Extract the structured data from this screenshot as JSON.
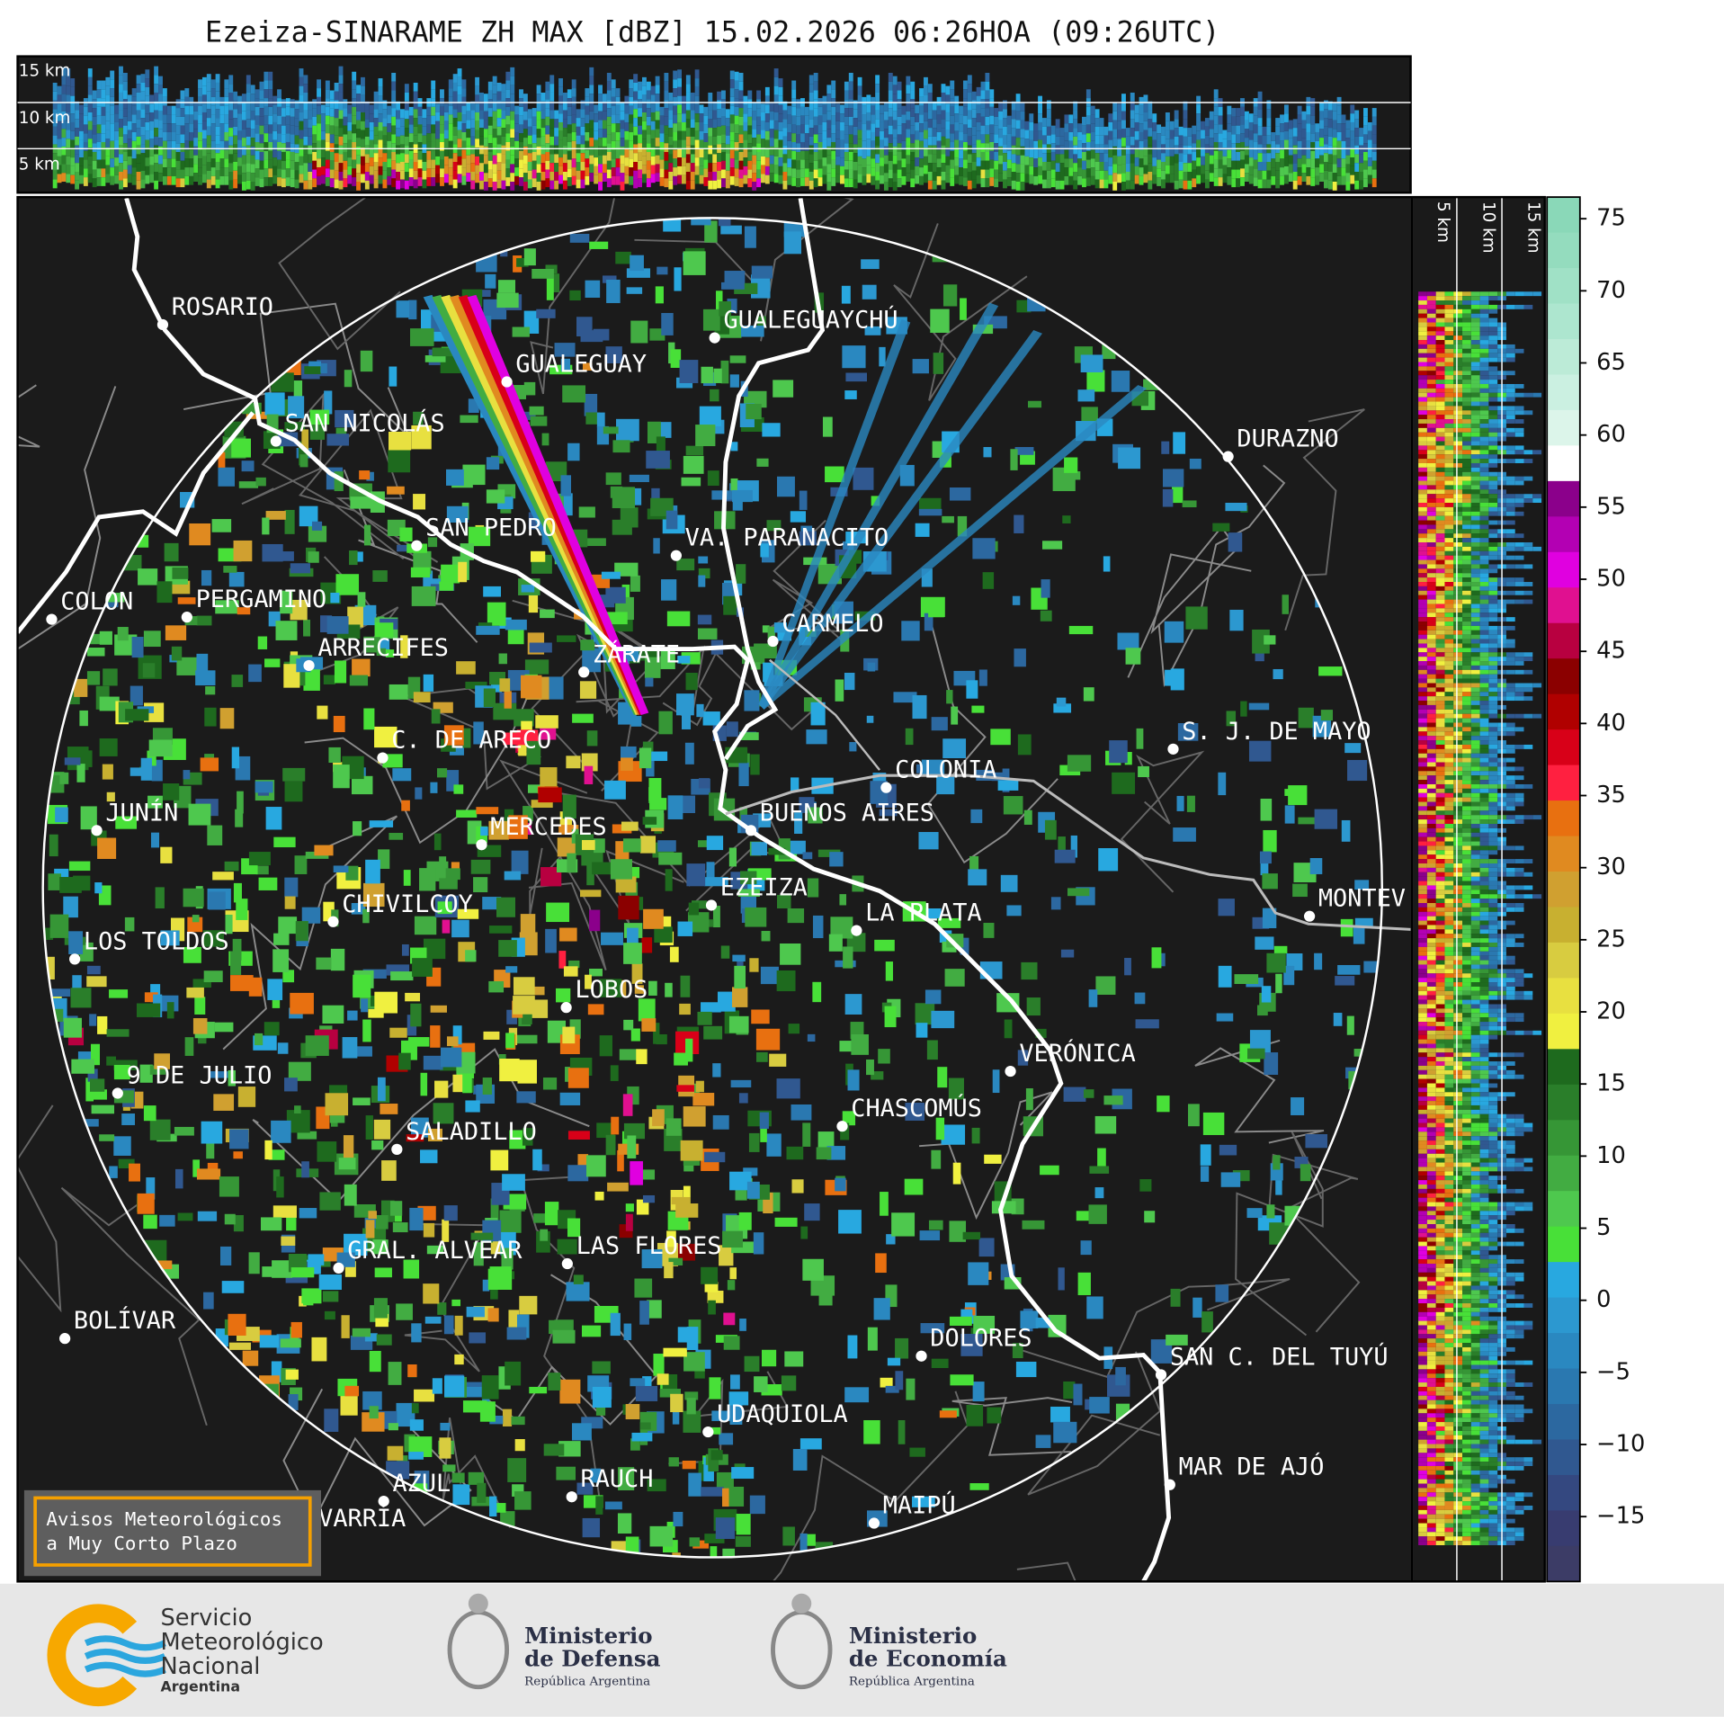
{
  "title": "Ezeiza-SINARAME ZH MAX [dBZ] 15.02.2026 06:26HOA (09:26UTC)",
  "top_panel_labels": [
    "15 km",
    "10 km",
    "5 km"
  ],
  "side_panel_labels": [
    "5 km",
    "10 km",
    "15 km"
  ],
  "colorbar": {
    "clim": [
      -19.5,
      76.5
    ],
    "ticks": [
      {
        "value": -15,
        "label": "−15"
      },
      {
        "value": -10,
        "label": "−10"
      },
      {
        "value": -5,
        "label": "−5"
      },
      0,
      5,
      10,
      15,
      20,
      25,
      30,
      35,
      40,
      45,
      50,
      55,
      60,
      65,
      70,
      75
    ],
    "colors": [
      "#8ad8b8",
      "#94dcbe",
      "#a0e1c6",
      "#ade6cf",
      "#bcebd7",
      "#cbf0e1",
      "#dcf5ea",
      "#ffffff",
      "#8b008b",
      "#b300b3",
      "#e000e0",
      "#e01090",
      "#b80040",
      "#8b0000",
      "#b00000",
      "#d80018",
      "#ff2040",
      "#e87010",
      "#e08a20",
      "#d0a030",
      "#c8b030",
      "#d8cc40",
      "#e8e040",
      "#f0f040",
      "#1e6a1e",
      "#2a7e2a",
      "#369636",
      "#42ac42",
      "#4ec84e",
      "#48e038",
      "#28a8e0",
      "#2c98d0",
      "#2a88c0",
      "#2a78b0",
      "#2c68a0",
      "#305890",
      "#344880",
      "#383c70",
      "#3c3c66"
    ]
  },
  "cities": [
    "ROSARIO",
    "GUALEGUAYCHÚ",
    "GUALEGUAY",
    "SAN NICOLÁS",
    "DURAZNO",
    "SAN PEDRO",
    "VA. PARANACITO",
    "COLON",
    "PERGAMINO",
    "CARMELO",
    "ARRECIFES",
    "ZÁRATE",
    "C. DE ARECO",
    "S. J. DE MAYO",
    "COLONIA",
    "JUNÍN",
    "BUENOS AIRES",
    "MERCEDES",
    "EZEIZA",
    "MONTEV",
    "CHIVILCOY",
    "LA PLATA",
    "LOS TOLDOS",
    "LOBOS",
    "VERÓNICA",
    "9 DE JULIO",
    "CHASCOMÚS",
    "SALADILLO",
    "GRAL. ALVEAR",
    "LAS FLORES",
    "BOLÍVAR",
    "DOLORES",
    "SAN C. DEL TUYÚ",
    "UDAQUIOLA",
    "MAR DE AJÓ",
    "RAUCH",
    "AZUL",
    "OLAVARRÍA",
    "MAIPÚ"
  ],
  "notice": [
    "Avisos Meteorológicos",
    "a Muy Corto Plazo"
  ],
  "footer": {
    "smn": [
      "Servicio",
      "Meteorológico",
      "Nacional",
      "Argentina"
    ],
    "defensa": [
      "Ministerio",
      "de Defensa",
      "República Argentina"
    ],
    "economia": [
      "Ministerio",
      "de Economía",
      "República Argentina"
    ]
  }
}
